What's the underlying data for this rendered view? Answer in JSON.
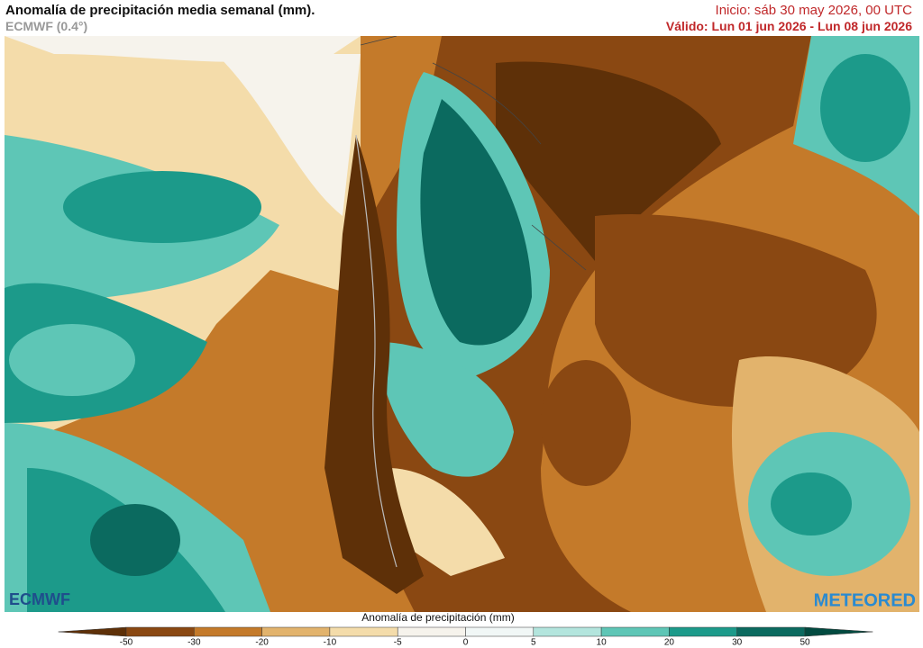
{
  "header": {
    "title": "Anomalía de precipitación media semanal (mm).",
    "model": "ECMWF (0.4°)",
    "init": "Inicio:  sáb 30 may 2026, 00 UTC",
    "valid": "Válido: Lun 01 jun 2026 - Lun 08 jun 2026"
  },
  "logos": {
    "left": "ECMWF",
    "right": "METEORED"
  },
  "colorbar": {
    "label": "Anomalía de precipitación (mm)",
    "ticks": [
      -50,
      -30,
      -20,
      -10,
      -5,
      0,
      5,
      10,
      20,
      30,
      50
    ],
    "colors": [
      "#5e3008",
      "#8a4812",
      "#c47a2a",
      "#e2b36c",
      "#f4dcaa",
      "#f6f3ec",
      "#f1f7f6",
      "#b3e5dd",
      "#5ec6b6",
      "#1c9a8a",
      "#0b6a5f",
      "#024a40"
    ]
  }
}
